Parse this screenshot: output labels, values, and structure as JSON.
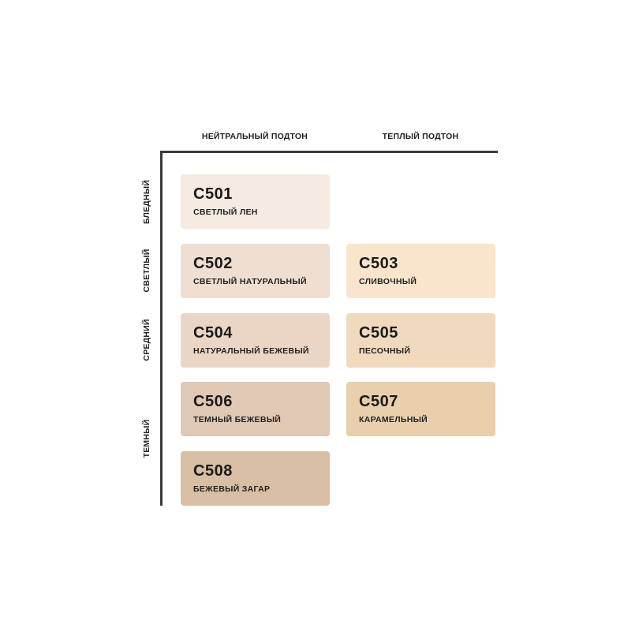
{
  "columns": [
    "НЕЙТРАЛЬНЫЙ ПОДТОН",
    "ТЕПЛЫЙ ПОДТОН"
  ],
  "rows": [
    "БЛЕДНЫЙ",
    "СВЕТЛЫЙ",
    "СРЕДНИЙ",
    "ТЕМНЫЙ"
  ],
  "shades": [
    {
      "code": "C501",
      "name": "СВЕТЛЫЙ ЛЕН",
      "color": "#f5ebe3"
    },
    {
      "code": "C502",
      "name": "СВЕТЛЫЙ НАТУРАЛЬНЫЙ",
      "color": "#f0dfd1"
    },
    {
      "code": "C503",
      "name": "СЛИВОЧНЫЙ",
      "color": "#f8e5cb"
    },
    {
      "code": "C504",
      "name": "НАТУРАЛЬНЫЙ БЕЖЕВЫЙ",
      "color": "#ebd6c6"
    },
    {
      "code": "C505",
      "name": "ПЕСОЧНЫЙ",
      "color": "#f1d9be"
    },
    {
      "code": "C506",
      "name": "ТЕМНЫЙ БЕЖЕВЫЙ",
      "color": "#e0c8b5"
    },
    {
      "code": "C507",
      "name": "КАРАМЕЛЬНЫЙ",
      "color": "#e9cfac"
    },
    {
      "code": "C508",
      "name": "БЕЖЕВЫЙ ЗАГАР",
      "color": "#d8bea3"
    }
  ]
}
